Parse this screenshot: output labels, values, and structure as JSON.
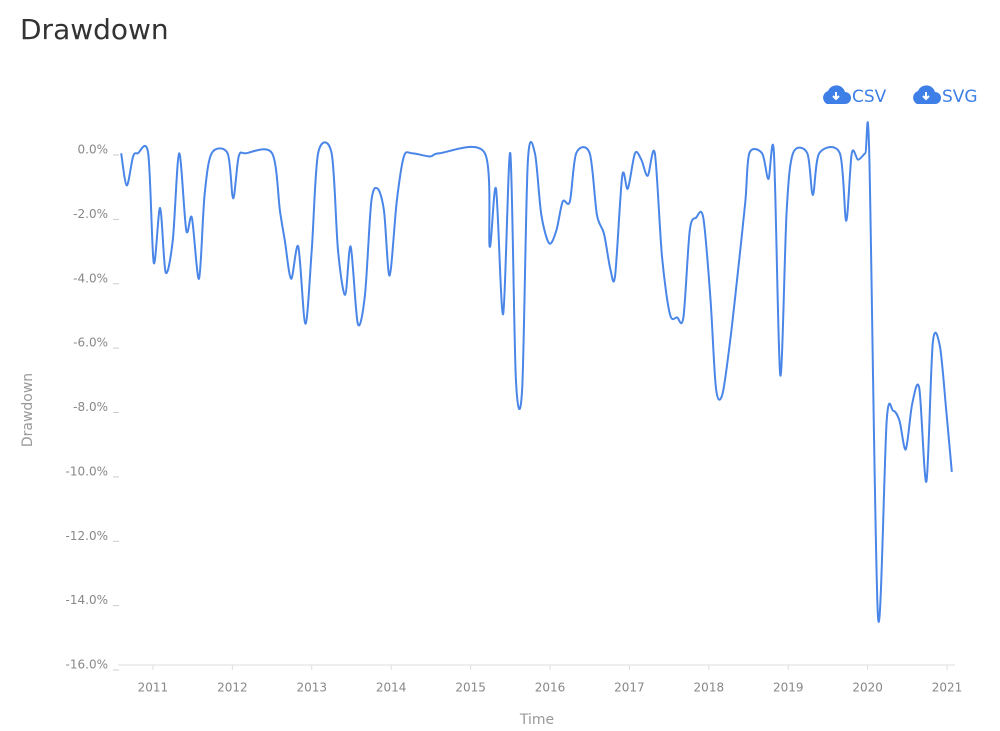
{
  "title": "Drawdown",
  "toolbar": [
    "CSV",
    "SVG"
  ],
  "chart_data": {
    "type": "line",
    "y_label": "Drawdown",
    "x_label": "Time",
    "color": "#4a86e8",
    "x": [
      2010.6,
      2010.67,
      2010.75,
      2010.81,
      2010.94,
      2011.01,
      2011.09,
      2011.16,
      2011.25,
      2011.33,
      2011.42,
      2011.49,
      2011.58,
      2011.65,
      2011.74,
      2011.94,
      2012.01,
      2012.08,
      2012.17,
      2012.5,
      2012.6,
      2012.66,
      2012.74,
      2012.83,
      2012.92,
      2013.0,
      2013.08,
      2013.25,
      2013.33,
      2013.42,
      2013.49,
      2013.58,
      2013.67,
      2013.75,
      2013.83,
      2013.91,
      2013.98,
      2014.07,
      2014.16,
      2014.26,
      2014.49,
      2014.61,
      2015.18,
      2015.24,
      2015.32,
      2015.41,
      2015.5,
      2015.57,
      2015.65,
      2015.72,
      2015.81,
      2015.89,
      2015.99,
      2016.08,
      2016.16,
      2016.25,
      2016.33,
      2016.5,
      2016.59,
      2016.68,
      2016.76,
      2016.82,
      2016.91,
      2016.98,
      2017.07,
      2017.15,
      2017.23,
      2017.32,
      2017.41,
      2017.51,
      2017.6,
      2017.68,
      2017.76,
      2017.84,
      2017.93,
      2018.02,
      2018.09,
      2018.17,
      2018.27,
      2018.37,
      2018.46,
      2018.51,
      2018.67,
      2018.75,
      2018.82,
      2018.9,
      2018.98,
      2019.06,
      2019.24,
      2019.31,
      2019.39,
      2019.65,
      2019.73,
      2019.8,
      2019.88,
      2019.97,
      2020.02,
      2020.13,
      2020.24,
      2020.32,
      2020.4,
      2020.48,
      2020.56,
      2020.65,
      2020.74,
      2020.82,
      2020.91,
      2020.99,
      2021.06
    ],
    "values": [
      -0.1,
      -1.1,
      -0.2,
      -0.1,
      -0.1,
      -3.5,
      -1.8,
      -3.8,
      -2.8,
      -0.1,
      -2.5,
      -2.1,
      -4.0,
      -1.4,
      -0.1,
      -0.1,
      -1.5,
      -0.2,
      -0.1,
      -0.1,
      -1.9,
      -2.8,
      -4.0,
      -3.0,
      -5.4,
      -3.1,
      -0.1,
      -0.1,
      -3.1,
      -4.5,
      -3.0,
      -5.4,
      -4.5,
      -1.6,
      -1.2,
      -1.9,
      -3.9,
      -1.6,
      -0.2,
      -0.1,
      -0.2,
      -0.1,
      -0.1,
      -3.0,
      -1.2,
      -5.1,
      -0.1,
      -7.1,
      -7.4,
      -0.4,
      -0.1,
      -2.0,
      -2.9,
      -2.5,
      -1.6,
      -1.6,
      -0.1,
      -0.1,
      -2.0,
      -2.6,
      -3.7,
      -3.9,
      -0.8,
      -1.2,
      -0.1,
      -0.3,
      -0.8,
      -0.1,
      -3.3,
      -5.1,
      -5.2,
      -5.2,
      -2.5,
      -2.1,
      -2.1,
      -4.6,
      -7.4,
      -7.6,
      -5.9,
      -3.7,
      -1.6,
      -0.1,
      -0.1,
      -0.9,
      -0.1,
      -7.0,
      -1.9,
      -0.1,
      -0.1,
      -1.4,
      -0.1,
      -0.1,
      -2.2,
      -0.1,
      -0.3,
      -0.1,
      -0.1,
      -14.5,
      -8.4,
      -8.1,
      -8.4,
      -9.3,
      -7.9,
      -7.4,
      -10.3,
      -6.0,
      -6.1,
      -8.1,
      -10.0
    ],
    "xlim": [
      2010.56,
      2021.1
    ],
    "xticks": [
      2011,
      2012,
      2013,
      2014,
      2015,
      2016,
      2017,
      2018,
      2019,
      2020,
      2021
    ],
    "ylim": [
      -16,
      0.2
    ],
    "yticks": [
      {
        "value": 0,
        "label": "0.0%"
      },
      {
        "value": -2,
        "label": "-2.0%"
      },
      {
        "value": -4,
        "label": "-4.0%"
      },
      {
        "value": -6,
        "label": "-6.0%"
      },
      {
        "value": -8,
        "label": "-8.0%"
      },
      {
        "value": -10,
        "label": "-10.0%"
      },
      {
        "value": -12,
        "label": "-12.0%"
      },
      {
        "value": -14,
        "label": "-14.0%"
      },
      {
        "value": -16,
        "label": "-16.0%"
      }
    ]
  }
}
